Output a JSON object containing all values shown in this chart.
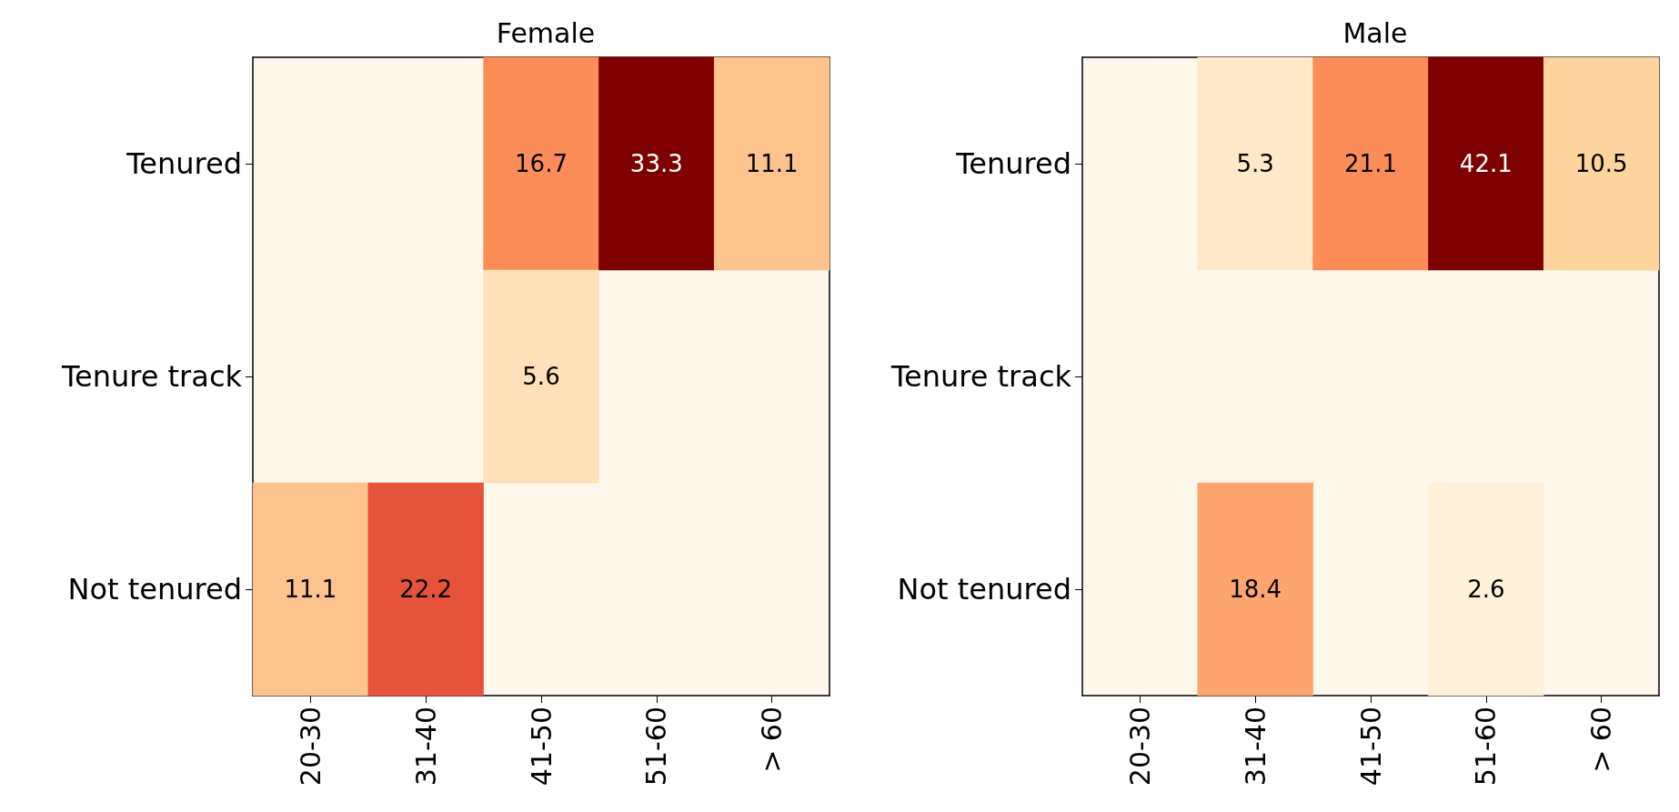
{
  "chart_data": [
    {
      "type": "heatmap",
      "title": "Female",
      "categories": [
        "20-30",
        "31-40",
        "41-50",
        "51-60",
        "> 60"
      ],
      "y_categories": [
        "Tenured",
        "Tenure track",
        "Not tenured"
      ],
      "cells": [
        [
          null,
          null,
          16.7,
          33.3,
          11.1
        ],
        [
          null,
          null,
          5.6,
          null,
          null
        ],
        [
          11.1,
          22.2,
          null,
          null,
          null
        ]
      ],
      "cell_labels": [
        [
          null,
          null,
          "16.7",
          "33.3",
          "11.1"
        ],
        [
          null,
          null,
          "5.6",
          null,
          null
        ],
        [
          "11.1",
          "22.2",
          null,
          null,
          null
        ]
      ]
    },
    {
      "type": "heatmap",
      "title": "Male",
      "categories": [
        "20-30",
        "31-40",
        "41-50",
        "51-60",
        "> 60"
      ],
      "y_categories": [
        "Tenured",
        "Tenure track",
        "Not tenured"
      ],
      "cells": [
        [
          null,
          5.3,
          21.1,
          42.1,
          10.5
        ],
        [
          null,
          null,
          null,
          null,
          null
        ],
        [
          null,
          18.4,
          null,
          2.6,
          null
        ]
      ],
      "cell_labels": [
        [
          null,
          "5.3",
          "21.1",
          "42.1",
          "10.5"
        ],
        [
          null,
          null,
          null,
          null,
          null
        ],
        [
          null,
          "18.4",
          null,
          "2.6",
          null
        ]
      ]
    }
  ]
}
